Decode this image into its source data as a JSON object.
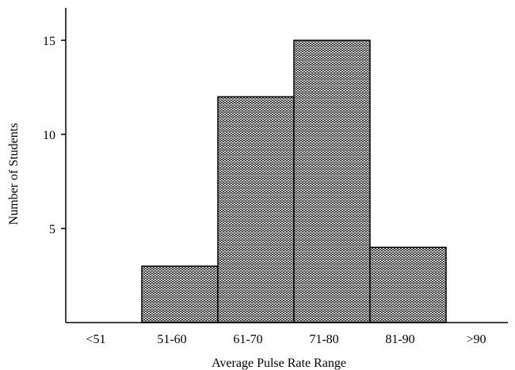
{
  "chart_data": {
    "type": "bar",
    "variant": "histogram",
    "categories": [
      "<51",
      "51-60",
      "61-70",
      "71-80",
      "81-90",
      ">90"
    ],
    "values": [
      0,
      3,
      12,
      15,
      4,
      0
    ],
    "title": "",
    "xlabel": "Average Pulse Rate Range",
    "ylabel": "Number of Students",
    "ylim": [
      0,
      16.5
    ],
    "yticks": [
      5,
      10,
      15
    ],
    "grid": false,
    "legend": "none",
    "bar_fill": "herringbone-hatch",
    "colors": {
      "bar_background": "#ffffff",
      "hatch": "#000000",
      "axis": "#000000"
    }
  }
}
